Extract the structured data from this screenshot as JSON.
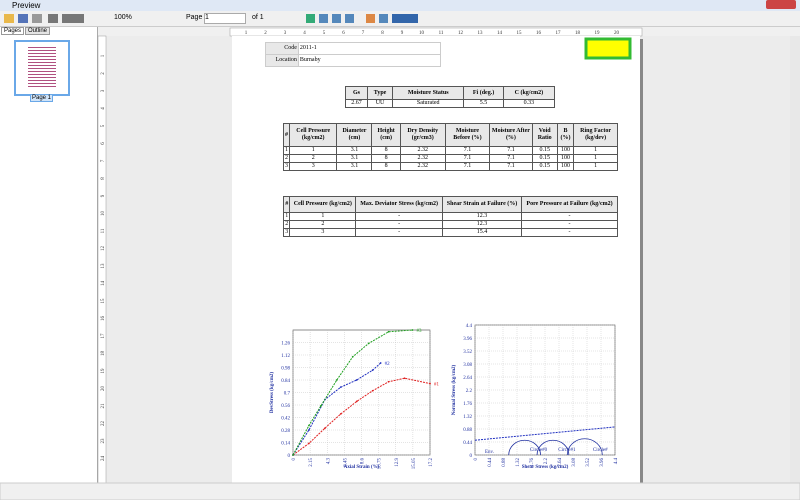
{
  "window": {
    "title": "Preview"
  },
  "toolbar": {
    "zoom": "100%",
    "page_label": "Page",
    "page_input": "1",
    "page_of": "of 1"
  },
  "sidebar": {
    "tabs": [
      "Pages",
      "Outline"
    ],
    "thumbnail_label": "Page 1"
  },
  "rulers": {
    "top": [
      "1",
      "2",
      "3",
      "4",
      "5",
      "6",
      "7",
      "8",
      "9",
      "10",
      "11",
      "12",
      "13",
      "14",
      "15",
      "16",
      "17",
      "18",
      "19",
      "20"
    ],
    "left": [
      "1",
      "2",
      "3",
      "4",
      "5",
      "6",
      "7",
      "8",
      "9",
      "10",
      "11",
      "12",
      "13",
      "14",
      "15",
      "16",
      "17",
      "18",
      "19",
      "20",
      "21",
      "22",
      "23",
      "24"
    ]
  },
  "report": {
    "info": [
      [
        "Code",
        "2011-1"
      ],
      [
        "Location",
        "Burnaby"
      ]
    ],
    "summary": {
      "header": [
        "Gs",
        "Type",
        "Moisture Status",
        "Fi (deg.)",
        "C (kg/cm2)"
      ],
      "rows": [
        [
          "2.67",
          "UU",
          "Saturated",
          "5.5",
          "0.33"
        ]
      ]
    },
    "specimens": {
      "header": [
        "#",
        "Cell Pressure (kg/cm2)",
        "Diameter (cm)",
        "Height (cm)",
        "Dry Density (gr/cm3)",
        "Moisture Before (%)",
        "Moisture After (%)",
        "Void Ratio",
        "B (%)",
        "Ring Factor (kg/dev)"
      ],
      "rows": [
        [
          "1",
          "1",
          "3.1",
          "8",
          "2.32",
          "7.1",
          "7.1",
          "0.15",
          "100",
          "1"
        ],
        [
          "2",
          "2",
          "3.1",
          "8",
          "2.32",
          "7.1",
          "7.1",
          "0.15",
          "100",
          "1"
        ],
        [
          "3",
          "3",
          "3.1",
          "8",
          "2.32",
          "7.1",
          "7.1",
          "0.15",
          "100",
          "1"
        ]
      ]
    },
    "results": {
      "header": [
        "#",
        "Cell Pressure (kg/cm2)",
        "Max. Deviator Stress (kg/cm2)",
        "Shear Strain at Failure (%)",
        "Pore Pressure at Failure (kg/cm2)"
      ],
      "rows": [
        [
          "1",
          "1",
          "-",
          "12.3",
          "-"
        ],
        [
          "2",
          "2",
          "-",
          "12.3",
          "-"
        ],
        [
          "3",
          "3",
          "-",
          "15.4",
          "-"
        ]
      ]
    }
  },
  "charts": [
    {
      "ylabel": "DevStress (kg/cm2)",
      "xlabel": "Axial Strain (%)",
      "xlim": [
        0,
        17.2
      ],
      "ylim": [
        0,
        1.4
      ],
      "xticks": [
        0,
        2.15,
        4.3,
        6.45,
        8.6,
        10.75,
        12.9,
        15.05,
        17.2
      ],
      "yticks": [
        0,
        0.14,
        0.28,
        0.42,
        0.56,
        0.7,
        0.84,
        0.98,
        1.12,
        1.26
      ],
      "series": [
        {
          "name": "#1",
          "color": "#e02020",
          "x": [
            0,
            2,
            4,
            6,
            8,
            10,
            12,
            14,
            17.2
          ],
          "values": [
            0,
            0.13,
            0.3,
            0.46,
            0.6,
            0.72,
            0.82,
            0.86,
            0.8
          ]
        },
        {
          "name": "#2",
          "color": "#2030c0",
          "x": [
            0,
            2,
            4,
            6,
            8,
            10,
            11
          ],
          "values": [
            0,
            0.28,
            0.62,
            0.76,
            0.84,
            0.95,
            1.03
          ]
        },
        {
          "name": "#3",
          "color": "#20a020",
          "x": [
            0,
            2,
            3.5,
            5.5,
            7.5,
            9.5,
            12,
            15
          ],
          "values": [
            0,
            0.33,
            0.55,
            0.84,
            1.1,
            1.25,
            1.38,
            1.4
          ]
        }
      ]
    },
    {
      "ylabel": "Normal Stress (kg/cm2)",
      "xlabel": "Shear Stress (kg/cm2)",
      "xlim": [
        0,
        4.4
      ],
      "ylim": [
        0,
        4.4
      ],
      "xticks": [
        0,
        0.44,
        0.88,
        1.32,
        1.76,
        2.2,
        2.64,
        3.08,
        3.52,
        3.96,
        4.4
      ],
      "yticks": [
        0,
        0.44,
        0.88,
        1.32,
        1.76,
        2.2,
        2.64,
        3.08,
        3.52,
        3.96,
        4.4
      ],
      "envelope": {
        "name": "Env.",
        "x": [
          0,
          4.4
        ],
        "values": [
          0.5,
          0.95
        ]
      },
      "circles": [
        {
          "name": "Circle#0",
          "center": 1.56,
          "radius": 0.5
        },
        {
          "name": "Circle#1",
          "center": 2.45,
          "radius": 0.5
        },
        {
          "name": "Circle#",
          "center": 3.45,
          "radius": 0.55
        }
      ]
    }
  ]
}
